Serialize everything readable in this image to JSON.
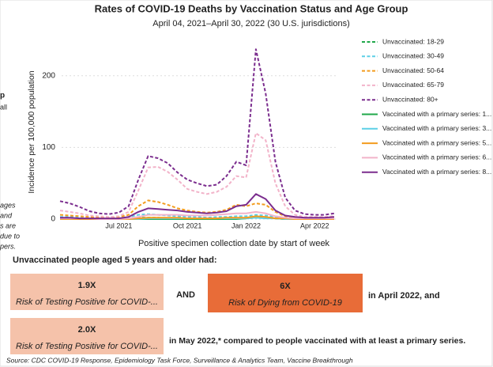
{
  "chart_data": {
    "type": "line",
    "title": "Rates of COVID-19 Deaths by Vaccination Status and Age Group",
    "subtitle": "April 04, 2021–April 30, 2022 (30 U.S. jurisdictions)",
    "x_label": "Positive specimen collection date by start of week",
    "y_label": "Incidence per 100,000 population",
    "categories": [
      null,
      null,
      null,
      null,
      null,
      null,
      "Jul 2021",
      null,
      null,
      null,
      null,
      null,
      null,
      "Oct 2021",
      null,
      null,
      null,
      null,
      null,
      "Jan 2022",
      null,
      null,
      null,
      null,
      null,
      null,
      "Apr 2022",
      null,
      null
    ],
    "ylim": [
      0,
      245
    ],
    "yticks": [
      0,
      100,
      200
    ],
    "grid": true,
    "series": [
      {
        "name": "Unvaccinated: 18-29",
        "color": "#1fa84a",
        "style": "dashed",
        "values": [
          1,
          1,
          0,
          0,
          0,
          0,
          0,
          1,
          2,
          2,
          2,
          1,
          1,
          1,
          1,
          1,
          1,
          1,
          1,
          1,
          2,
          2,
          1,
          0,
          0,
          0,
          0,
          0,
          0
        ]
      },
      {
        "name": "Unvaccinated: 30-49",
        "color": "#5ccfe6",
        "style": "dashed",
        "values": [
          3,
          3,
          2,
          1,
          1,
          1,
          1,
          3,
          6,
          7,
          6,
          5,
          4,
          3,
          3,
          2,
          3,
          3,
          4,
          4,
          6,
          5,
          3,
          1,
          1,
          0,
          0,
          0,
          0
        ]
      },
      {
        "name": "Unvaccinated: 50-64",
        "color": "#f39c1e",
        "style": "dashed",
        "values": [
          6,
          5,
          4,
          3,
          2,
          2,
          3,
          6,
          18,
          26,
          24,
          20,
          15,
          12,
          10,
          9,
          10,
          13,
          20,
          18,
          22,
          20,
          10,
          4,
          2,
          1,
          1,
          1,
          1
        ]
      },
      {
        "name": "Unvaccinated: 65-79",
        "color": "#f2b3c9",
        "style": "dashed",
        "values": [
          12,
          10,
          8,
          5,
          4,
          3,
          4,
          10,
          40,
          72,
          73,
          66,
          55,
          42,
          38,
          35,
          38,
          45,
          60,
          58,
          120,
          110,
          50,
          18,
          6,
          3,
          3,
          3,
          4
        ]
      },
      {
        "name": "Unvaccinated: 80+",
        "color": "#7b2d8e",
        "style": "dashed",
        "values": [
          25,
          22,
          17,
          11,
          8,
          7,
          9,
          18,
          55,
          88,
          85,
          78,
          65,
          55,
          50,
          46,
          48,
          60,
          80,
          75,
          237,
          175,
          80,
          30,
          12,
          7,
          6,
          6,
          8
        ]
      },
      {
        "name": "Vaccinated with a primary series: 1...",
        "color": "#1fa84a",
        "style": "solid",
        "values": [
          0,
          0,
          0,
          0,
          0,
          0,
          0,
          0,
          0,
          0,
          0,
          0,
          0,
          0,
          0,
          0,
          0,
          0,
          0,
          1,
          3,
          2,
          1,
          0,
          0,
          0,
          0,
          0,
          0
        ]
      },
      {
        "name": "Vaccinated with a primary series: 3...",
        "color": "#5ccfe6",
        "style": "solid",
        "values": [
          0,
          0,
          0,
          0,
          0,
          0,
          0,
          0,
          0,
          1,
          1,
          1,
          1,
          1,
          1,
          1,
          1,
          1,
          1,
          1,
          2,
          1,
          1,
          0,
          0,
          0,
          0,
          0,
          0
        ]
      },
      {
        "name": "Vaccinated with a primary series: 5...",
        "color": "#f39c1e",
        "style": "solid",
        "values": [
          0,
          0,
          0,
          0,
          0,
          0,
          0,
          0,
          1,
          2,
          2,
          2,
          2,
          1,
          1,
          1,
          1,
          2,
          2,
          2,
          4,
          3,
          1,
          1,
          0,
          0,
          0,
          0,
          0
        ]
      },
      {
        "name": "Vaccinated with a primary series: 6...",
        "color": "#f2b3c9",
        "style": "solid",
        "values": [
          1,
          1,
          1,
          1,
          0,
          0,
          0,
          1,
          3,
          6,
          6,
          6,
          6,
          5,
          5,
          5,
          6,
          7,
          8,
          8,
          10,
          8,
          4,
          2,
          1,
          1,
          1,
          1,
          1
        ]
      },
      {
        "name": "Vaccinated with a primary series: 8...",
        "color": "#7b2d8e",
        "style": "solid",
        "values": [
          2,
          2,
          1,
          1,
          1,
          1,
          1,
          3,
          10,
          15,
          14,
          13,
          12,
          10,
          9,
          8,
          9,
          11,
          18,
          20,
          35,
          28,
          12,
          5,
          3,
          2,
          2,
          2,
          3
        ]
      }
    ]
  },
  "left_fragments": [
    "p",
    "all",
    "ages",
    "and",
    "s are",
    "due to",
    "pers."
  ],
  "summary": {
    "intro": "Unvaccinated people aged 5 years and older had:",
    "box1": {
      "value": "1.9X",
      "label": "Risk of Testing Positive for COVID-..."
    },
    "and": "AND",
    "box2": {
      "value": "6X",
      "label": "Risk of Dying from COVID-19"
    },
    "after_box2": "in April 2022, and",
    "box3": {
      "value": "2.0X",
      "label": "Risk of Testing Positive for COVID-..."
    },
    "after_box3": "in May 2022,* compared to people vaccinated with at least a primary series."
  },
  "source": "Source: CDC COVID-19 Response, Epidemiology Task Force, Surveillance & Analytics Team, Vaccine Breakthrough"
}
